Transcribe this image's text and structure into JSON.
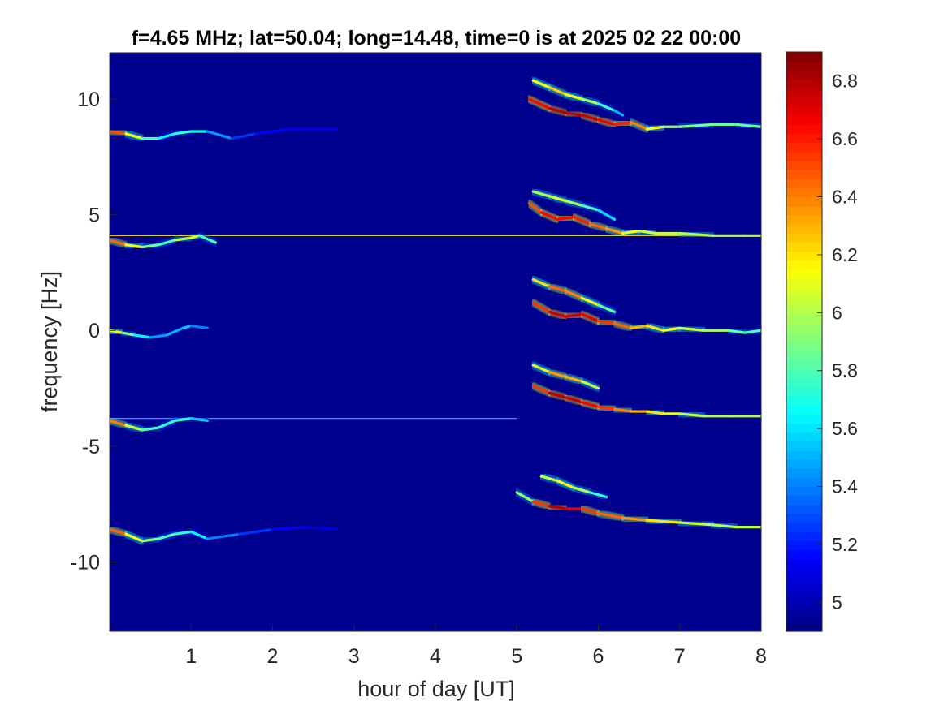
{
  "chart_data": {
    "type": "heatmap",
    "title": "f=4.65 MHz;  lat=50.04; long=14.48, time=0 is at 2025 02 22 00:00",
    "xlabel": "hour of day [UT]",
    "ylabel": "frequency [Hz]",
    "xlim": [
      0,
      8
    ],
    "ylim": [
      -13,
      12
    ],
    "xticks": [
      "1",
      "2",
      "3",
      "4",
      "5",
      "6",
      "7",
      "8"
    ],
    "yticks": [
      "10",
      "5",
      "0",
      "-5",
      "-10"
    ],
    "xtick_values": [
      1,
      2,
      3,
      4,
      5,
      6,
      7,
      8
    ],
    "ytick_values": [
      10,
      5,
      0,
      -5,
      -10
    ],
    "colorbar": {
      "range": [
        4.9,
        6.9
      ],
      "ticks": [
        "6.8",
        "6.6",
        "6.4",
        "6.2",
        "6",
        "5.8",
        "5.6",
        "5.4",
        "5.2",
        "5"
      ],
      "tick_values": [
        6.8,
        6.6,
        6.4,
        6.2,
        6.0,
        5.8,
        5.6,
        5.4,
        5.2,
        5.0
      ],
      "colormap": "jet"
    },
    "background_level": 4.95,
    "colors": {
      "background": "#00008f",
      "axes": "#262626"
    },
    "traces": [
      {
        "name": "trace_+8.5Hz",
        "segments": [
          {
            "x": [
              0.0,
              0.2,
              0.4,
              0.6,
              0.8,
              1.0,
              1.2,
              1.5,
              1.8,
              2.2,
              2.8
            ],
            "y": [
              8.6,
              8.5,
              8.3,
              8.3,
              8.5,
              8.6,
              8.6,
              8.3,
              8.5,
              8.7,
              8.7
            ],
            "level": [
              6.7,
              6.3,
              6.0,
              5.6,
              5.7,
              5.8,
              5.6,
              5.3,
              5.2,
              5.1,
              5.1
            ]
          },
          {
            "x": [
              5.15,
              5.4,
              5.6,
              5.8,
              6.0,
              6.2,
              6.4,
              6.6,
              6.8,
              7.0,
              7.4,
              7.7,
              8.0
            ],
            "y": [
              10.0,
              9.6,
              9.4,
              9.3,
              9.1,
              8.9,
              9.0,
              8.7,
              8.8,
              8.8,
              8.9,
              8.9,
              8.8
            ],
            "level": [
              6.5,
              6.8,
              6.8,
              6.8,
              6.7,
              6.7,
              6.5,
              6.3,
              6.0,
              5.9,
              5.9,
              5.8,
              5.9
            ]
          },
          {
            "x": [
              5.2,
              5.4,
              5.6,
              5.8,
              6.0,
              6.2,
              6.3
            ],
            "y": [
              10.8,
              10.5,
              10.2,
              10.0,
              9.8,
              9.5,
              9.3
            ],
            "level": [
              6.0,
              6.3,
              6.2,
              6.1,
              5.9,
              5.6,
              5.4
            ]
          }
        ]
      },
      {
        "name": "trace_+4Hz",
        "segments": [
          {
            "x": [
              0.0,
              0.2,
              0.4,
              0.6,
              0.8,
              1.0,
              1.1,
              1.3
            ],
            "y": [
              3.9,
              3.7,
              3.6,
              3.7,
              3.9,
              4.0,
              4.1,
              3.8
            ],
            "level": [
              6.6,
              6.3,
              6.0,
              5.8,
              5.8,
              6.2,
              6.0,
              5.6
            ]
          },
          {
            "x": [
              5.15,
              5.3,
              5.5,
              5.7,
              5.9,
              6.1,
              6.3,
              6.5,
              6.7,
              7.0,
              7.4,
              7.8,
              8.0
            ],
            "y": [
              5.5,
              5.1,
              4.8,
              4.9,
              4.6,
              4.4,
              4.2,
              4.3,
              4.2,
              4.2,
              4.1,
              4.1,
              4.1
            ],
            "level": [
              6.3,
              6.7,
              6.6,
              6.7,
              6.5,
              6.4,
              6.3,
              6.0,
              6.1,
              6.0,
              6.0,
              6.0,
              6.0
            ]
          },
          {
            "x": [
              5.2,
              5.4,
              5.6,
              5.8,
              6.0,
              6.2
            ],
            "y": [
              6.0,
              5.8,
              5.6,
              5.4,
              5.2,
              4.8
            ],
            "level": [
              5.9,
              6.1,
              6.1,
              5.9,
              5.7,
              5.5
            ]
          }
        ]
      },
      {
        "name": "trace_0Hz",
        "segments": [
          {
            "x": [
              0.0,
              0.15,
              0.3,
              0.5,
              0.7,
              0.9,
              1.0,
              1.2
            ],
            "y": [
              0.0,
              -0.1,
              -0.2,
              -0.3,
              -0.2,
              0.1,
              0.2,
              0.1
            ],
            "level": [
              6.3,
              6.0,
              5.8,
              5.5,
              5.4,
              5.6,
              5.5,
              5.3
            ]
          },
          {
            "x": [
              5.2,
              5.4,
              5.6,
              5.8,
              6.0,
              6.2,
              6.4,
              6.6,
              6.8,
              7.0,
              7.3,
              7.6,
              7.8,
              8.0
            ],
            "y": [
              1.2,
              0.8,
              0.6,
              0.7,
              0.4,
              0.3,
              0.1,
              0.2,
              0.0,
              0.1,
              0.0,
              0.0,
              -0.1,
              0.0
            ],
            "level": [
              6.3,
              6.8,
              6.7,
              6.8,
              6.6,
              6.5,
              6.4,
              6.2,
              6.2,
              6.1,
              6.0,
              5.9,
              5.8,
              5.8
            ]
          },
          {
            "x": [
              5.2,
              5.4,
              5.6,
              5.8,
              6.0,
              6.2
            ],
            "y": [
              2.2,
              1.9,
              1.7,
              1.4,
              1.1,
              0.8
            ],
            "level": [
              6.0,
              6.4,
              6.5,
              6.3,
              6.0,
              5.7
            ]
          }
        ]
      },
      {
        "name": "trace_-4Hz",
        "segments": [
          {
            "x": [
              0.0,
              0.2,
              0.4,
              0.6,
              0.8,
              1.0,
              1.2
            ],
            "y": [
              -3.9,
              -4.1,
              -4.3,
              -4.2,
              -3.9,
              -3.8,
              -3.9
            ],
            "level": [
              6.6,
              6.2,
              5.9,
              5.7,
              5.8,
              5.7,
              5.4
            ]
          },
          {
            "x": [
              5.2,
              5.4,
              5.6,
              5.8,
              6.0,
              6.2,
              6.4,
              6.6,
              6.8,
              7.0,
              7.3,
              7.6,
              8.0
            ],
            "y": [
              -2.4,
              -2.7,
              -2.9,
              -3.1,
              -3.3,
              -3.4,
              -3.5,
              -3.5,
              -3.6,
              -3.6,
              -3.7,
              -3.7,
              -3.7
            ],
            "level": [
              6.3,
              6.8,
              6.8,
              6.7,
              6.6,
              6.5,
              6.3,
              6.3,
              6.1,
              6.1,
              6.0,
              6.0,
              6.0
            ]
          },
          {
            "x": [
              5.2,
              5.4,
              5.6,
              5.8,
              6.0
            ],
            "y": [
              -1.5,
              -1.8,
              -2.0,
              -2.2,
              -2.5
            ],
            "level": [
              5.9,
              6.3,
              6.4,
              6.2,
              5.9
            ]
          }
        ]
      },
      {
        "name": "trace_-8.5Hz",
        "segments": [
          {
            "x": [
              0.0,
              0.2,
              0.4,
              0.6,
              0.8,
              1.0,
              1.2,
              1.6,
              2.0,
              2.4,
              2.8
            ],
            "y": [
              -8.6,
              -8.8,
              -9.1,
              -9.0,
              -8.8,
              -8.7,
              -9.0,
              -8.8,
              -8.6,
              -8.5,
              -8.6
            ],
            "level": [
              6.6,
              6.3,
              6.0,
              5.9,
              5.7,
              5.8,
              5.5,
              5.3,
              5.2,
              5.1,
              5.1
            ]
          },
          {
            "x": [
              5.0,
              5.2,
              5.4,
              5.6,
              5.8,
              6.0,
              6.3,
              6.6,
              7.0,
              7.4,
              7.7,
              8.0
            ],
            "y": [
              -7.0,
              -7.4,
              -7.6,
              -7.7,
              -7.7,
              -7.9,
              -8.1,
              -8.2,
              -8.3,
              -8.4,
              -8.5,
              -8.5
            ],
            "level": [
              5.6,
              6.3,
              6.8,
              6.8,
              6.6,
              6.5,
              6.4,
              6.3,
              6.1,
              6.0,
              6.0,
              6.0
            ]
          },
          {
            "x": [
              5.3,
              5.5,
              5.7,
              5.9,
              6.1
            ],
            "y": [
              -6.3,
              -6.5,
              -6.8,
              -7.0,
              -7.2
            ],
            "level": [
              5.9,
              6.2,
              6.1,
              5.9,
              5.6
            ]
          }
        ]
      }
    ],
    "steady_lines": [
      {
        "name": "line_+4.1Hz",
        "y": 4.1,
        "x": [
          0.0,
          8.0
        ],
        "level": 6.2
      },
      {
        "name": "line_-3.8Hz",
        "y": -3.8,
        "x": [
          0.0,
          5.0
        ],
        "level": 5.5
      }
    ]
  }
}
